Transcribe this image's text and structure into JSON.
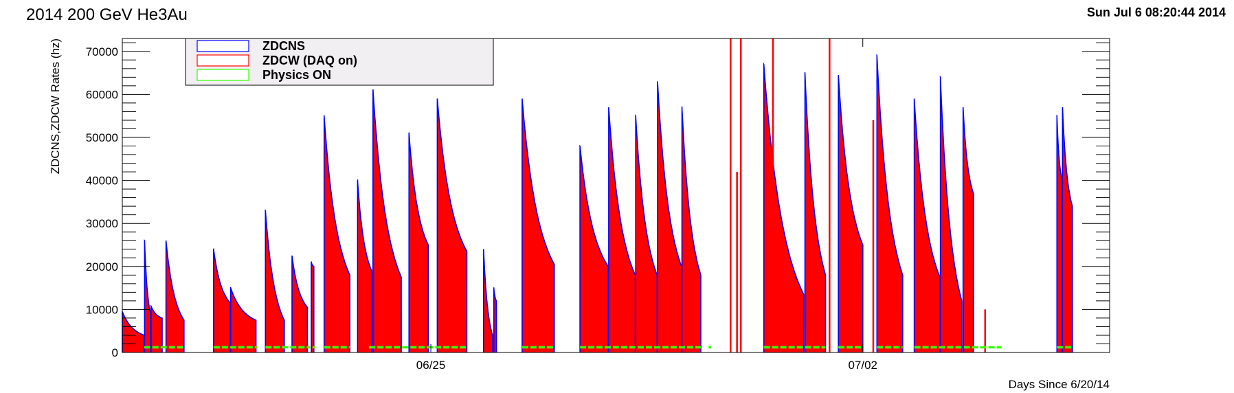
{
  "header": {
    "title": "2014 200 GeV He3Au",
    "timestamp": "Sun Jul  6 08:20:44 2014"
  },
  "chart_data": {
    "type": "area",
    "title": "2014 200 GeV He3Au",
    "xlabel": "Days Since 6/20/14",
    "ylabel": "ZDCNS,ZDCW Rates (hz)",
    "xlim": [
      "2014-06-20T00:00",
      "2014-07-06T00:00"
    ],
    "ylim": [
      0,
      73000
    ],
    "yticks": [
      0,
      10000,
      20000,
      30000,
      40000,
      50000,
      60000,
      70000
    ],
    "xtick_labels": [
      {
        "date": "2014-06-25",
        "label": "06/25"
      },
      {
        "date": "2014-07-02",
        "label": "07/02"
      }
    ],
    "grid": false,
    "legend_placement": "top-left",
    "legend": [
      {
        "name": "ZDCNS",
        "color": "#0000ff"
      },
      {
        "name": "ZDCW (DAQ on)",
        "color": "#ff0000"
      },
      {
        "name": "Physics ON",
        "color": "#33ff00"
      }
    ],
    "fills": [
      {
        "start": "2014-06-20T00:00",
        "end": "2014-06-20T08:30",
        "peak": 9500,
        "tail": 4000
      },
      {
        "start": "2014-06-20T08:40",
        "end": "2014-06-20T11:00",
        "peak": 26000,
        "tail": 9000
      },
      {
        "start": "2014-06-20T11:10",
        "end": "2014-06-20T15:30",
        "peak": 10800,
        "tail": 8000
      },
      {
        "start": "2014-06-20T17:00",
        "end": "2014-06-21T00:00",
        "peak": 26000,
        "tail": 7500
      },
      {
        "start": "2014-06-21T11:30",
        "end": "2014-06-21T18:00",
        "peak": 24000,
        "tail": 11500
      },
      {
        "start": "2014-06-21T18:10",
        "end": "2014-06-22T04:00",
        "peak": 15000,
        "tail": 7500
      },
      {
        "start": "2014-06-22T07:40",
        "end": "2014-06-22T15:00",
        "peak": 33000,
        "tail": 7500
      },
      {
        "start": "2014-06-22T18:00",
        "end": "2014-06-23T00:00",
        "peak": 22500,
        "tail": 10500
      },
      {
        "start": "2014-06-23T01:30",
        "end": "2014-06-23T02:30",
        "peak": 21000,
        "tail": 20000
      },
      {
        "start": "2014-06-23T06:30",
        "end": "2014-06-23T16:30",
        "peak": 55000,
        "tail": 18000
      },
      {
        "start": "2014-06-23T19:30",
        "end": "2014-06-24T01:00",
        "peak": 40000,
        "tail": 19000
      },
      {
        "start": "2014-06-24T01:30",
        "end": "2014-06-24T12:30",
        "peak": 61000,
        "tail": 17500
      },
      {
        "start": "2014-06-24T15:30",
        "end": "2014-06-24T23:00",
        "peak": 51000,
        "tail": 25000
      },
      {
        "start": "2014-06-25T02:30",
        "end": "2014-06-25T14:00",
        "peak": 59000,
        "tail": 23500
      },
      {
        "start": "2014-06-25T20:30",
        "end": "2014-06-26T00:00",
        "peak": 24000,
        "tail": 4000
      },
      {
        "start": "2014-06-26T00:30",
        "end": "2014-06-26T01:30",
        "peak": 15000,
        "tail": 12000
      },
      {
        "start": "2014-06-26T11:30",
        "end": "2014-06-27T00:00",
        "peak": 59000,
        "tail": 20500
      },
      {
        "start": "2014-06-27T10:00",
        "end": "2014-06-27T21:00",
        "peak": 48000,
        "tail": 20000
      },
      {
        "start": "2014-06-27T21:10",
        "end": "2014-06-28T07:30",
        "peak": 57000,
        "tail": 18000
      },
      {
        "start": "2014-06-28T07:40",
        "end": "2014-06-28T16:00",
        "peak": 55000,
        "tail": 18000
      },
      {
        "start": "2014-06-28T16:10",
        "end": "2014-06-29T01:30",
        "peak": 63000,
        "tail": 20000
      },
      {
        "start": "2014-06-29T01:40",
        "end": "2014-06-29T09:00",
        "peak": 57000,
        "tail": 18000
      },
      {
        "start": "2014-06-30T09:30",
        "end": "2014-07-01T01:00",
        "peak": 67000,
        "tail": 13500
      },
      {
        "start": "2014-07-01T01:30",
        "end": "2014-07-01T09:30",
        "peak": 65000,
        "tail": 18000
      },
      {
        "start": "2014-07-01T14:30",
        "end": "2014-07-02T00:00",
        "peak": 64500,
        "tail": 25000
      },
      {
        "start": "2014-07-02T05:30",
        "end": "2014-07-02T15:30",
        "peak": 69000,
        "tail": 18000
      },
      {
        "start": "2014-07-02T20:00",
        "end": "2014-07-03T06:00",
        "peak": 59000,
        "tail": 17500
      },
      {
        "start": "2014-07-03T06:10",
        "end": "2014-07-03T14:30",
        "peak": 64000,
        "tail": 12000
      },
      {
        "start": "2014-07-03T15:00",
        "end": "2014-07-03T19:00",
        "peak": 57000,
        "tail": 37000
      },
      {
        "start": "2014-07-05T03:30",
        "end": "2014-07-05T05:30",
        "peak": 55000,
        "tail": 40000
      },
      {
        "start": "2014-07-05T05:40",
        "end": "2014-07-05T09:30",
        "peak": 57000,
        "tail": 34000
      }
    ],
    "spikes": [
      {
        "time": "2014-06-29T20:30",
        "value": 73000
      },
      {
        "time": "2014-06-29T23:00",
        "value": 42000
      },
      {
        "time": "2014-06-30T00:30",
        "value": 73000
      },
      {
        "time": "2014-06-30T13:00",
        "value": 73000
      },
      {
        "time": "2014-07-01T11:00",
        "value": 73000
      },
      {
        "time": "2014-07-02T04:00",
        "value": 54000
      },
      {
        "time": "2014-07-03T23:30",
        "value": 10000
      }
    ],
    "physics_on": [
      [
        "2014-06-20T08:30",
        "2014-06-21T00:00"
      ],
      [
        "2014-06-21T11:30",
        "2014-06-22T04:30"
      ],
      [
        "2014-06-22T07:40",
        "2014-06-23T01:00"
      ],
      [
        "2014-06-23T02:00",
        "2014-06-23T03:00"
      ],
      [
        "2014-06-23T06:30",
        "2014-06-23T16:30"
      ],
      [
        "2014-06-24T00:00",
        "2014-06-25T14:00"
      ],
      [
        "2014-06-26T11:30",
        "2014-06-27T00:00"
      ],
      [
        "2014-06-27T10:00",
        "2014-06-29T09:00"
      ],
      [
        "2014-06-29T12:00",
        "2014-06-29T13:00"
      ],
      [
        "2014-06-30T09:30",
        "2014-07-01T09:30"
      ],
      [
        "2014-07-01T14:30",
        "2014-07-02T00:00"
      ],
      [
        "2014-07-02T05:30",
        "2014-07-02T15:30"
      ],
      [
        "2014-07-02T20:00",
        "2014-07-04T06:00"
      ],
      [
        "2014-07-05T03:30",
        "2014-07-05T09:30"
      ]
    ],
    "colors": {
      "zdcns": "#0000ff",
      "zdcw": "#ff0000",
      "physics": "#33ff00"
    }
  }
}
